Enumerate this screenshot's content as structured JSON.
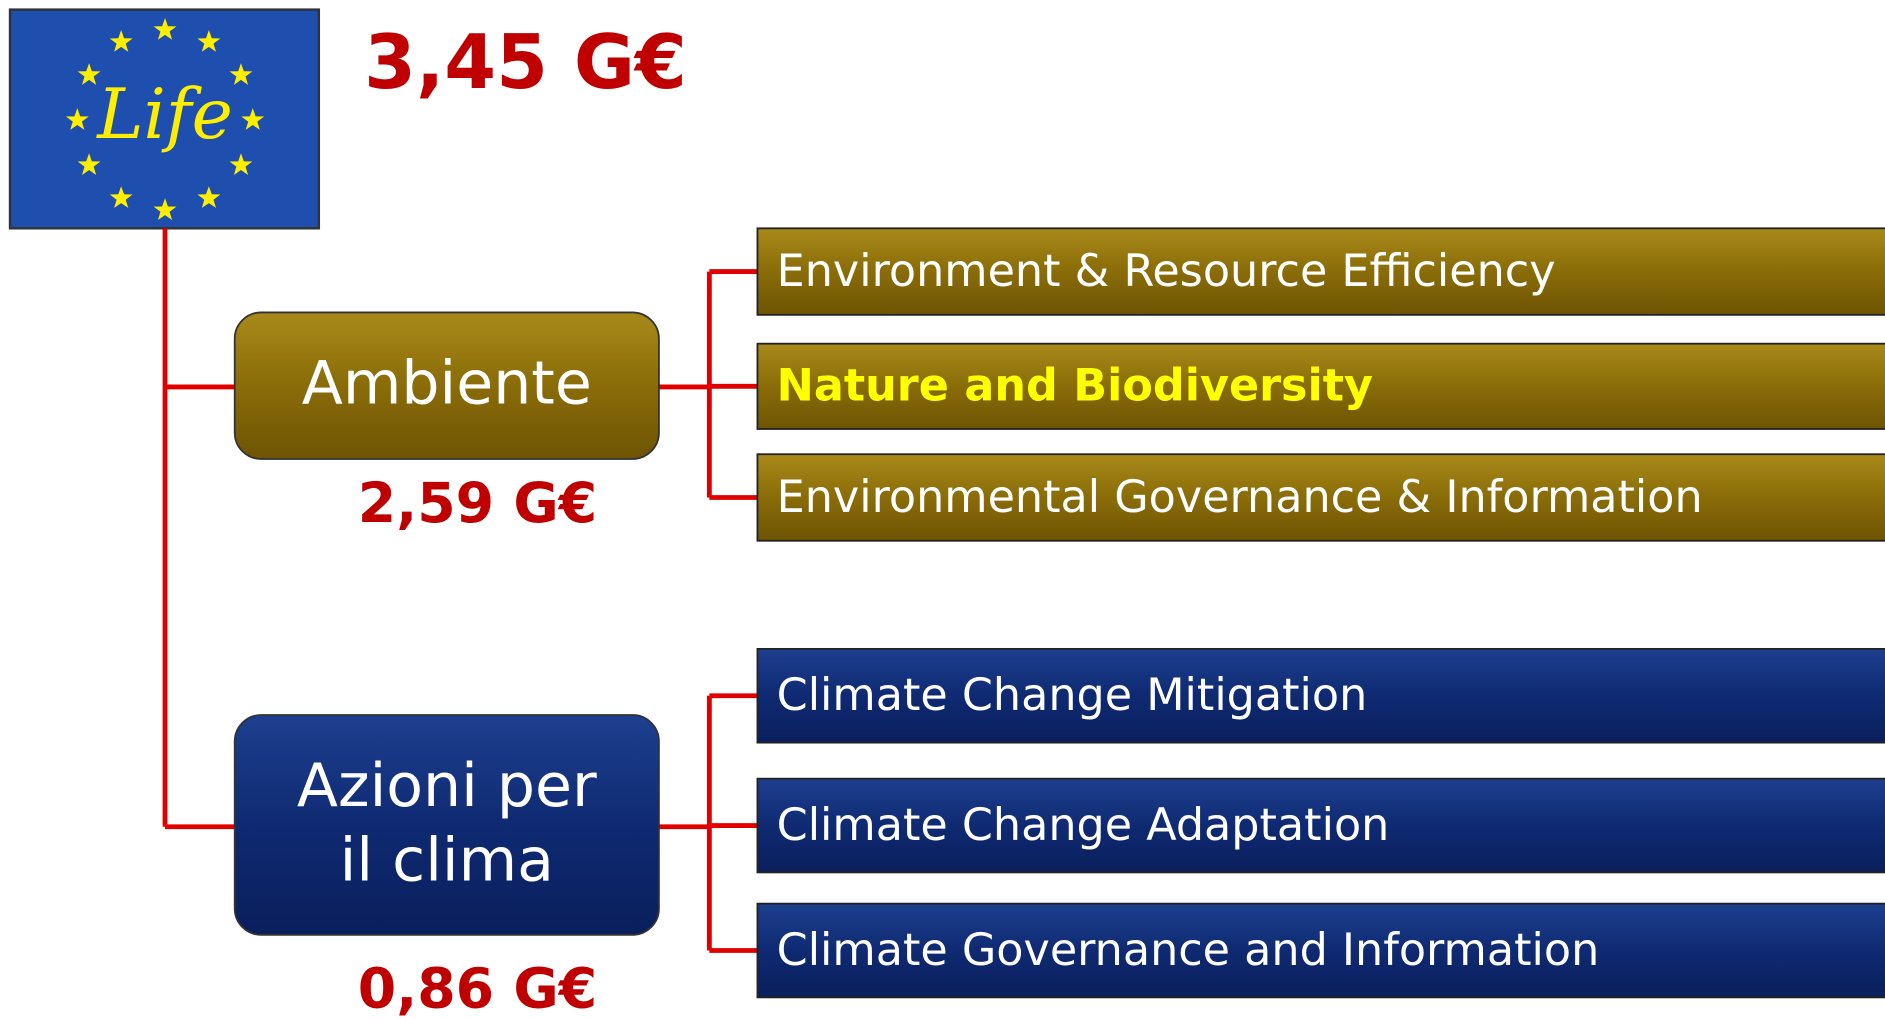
{
  "logo": {
    "text": "Life"
  },
  "total": "3,45 G€",
  "branches": [
    {
      "label_lines": [
        "Ambiente"
      ],
      "amount": "2,59 G€",
      "theme": "gold",
      "items": [
        {
          "label": "Environment & Resource Efficiency",
          "highlight": false
        },
        {
          "label": "Nature and Biodiversity",
          "highlight": true
        },
        {
          "label": "Environmental Governance & Information",
          "highlight": false
        }
      ]
    },
    {
      "label_lines": [
        "Azioni per",
        "il clima"
      ],
      "amount": "0,86 G€",
      "theme": "blue",
      "items": [
        {
          "label": "Climate Change Mitigation",
          "highlight": false
        },
        {
          "label": "Climate Change Adaptation",
          "highlight": false
        },
        {
          "label": "Climate Governance and Information",
          "highlight": false
        }
      ]
    }
  ]
}
